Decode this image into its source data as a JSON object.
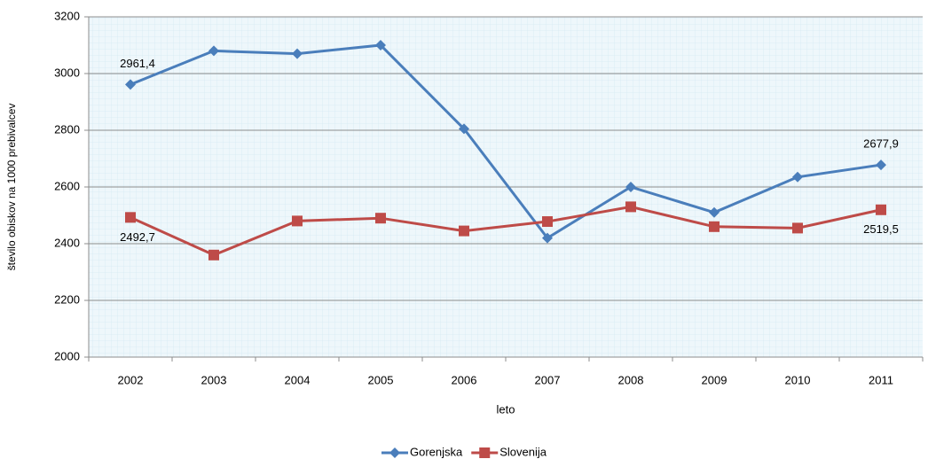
{
  "chart_data": {
    "type": "line",
    "categories": [
      "2002",
      "2003",
      "2004",
      "2005",
      "2006",
      "2007",
      "2008",
      "2009",
      "2010",
      "2011"
    ],
    "series": [
      {
        "name": "Gorenjska",
        "color": "#4a7ebb",
        "marker": "diamond",
        "values": [
          2961.4,
          3080,
          3070,
          3100,
          2805,
          2420,
          2600,
          2510,
          2635,
          2677.9
        ],
        "value_labels": [
          "2961,4",
          null,
          null,
          null,
          null,
          null,
          null,
          null,
          null,
          "2677,9"
        ]
      },
      {
        "name": "Slovenija",
        "color": "#be4b48",
        "marker": "square",
        "values": [
          2492.7,
          2360,
          2480,
          2490,
          2445,
          2478,
          2530,
          2460,
          2455,
          2519.5
        ],
        "value_labels": [
          "2492,7",
          null,
          null,
          null,
          null,
          null,
          null,
          null,
          null,
          "2519,5"
        ]
      }
    ],
    "xlabel": "leto",
    "ylabel": "število obiskov na 1000 prebivalcev",
    "ylim": [
      2000,
      3200
    ],
    "yticks": [
      2000,
      2200,
      2400,
      2600,
      2800,
      3000,
      3200
    ],
    "grid": true,
    "legend": "bottom"
  }
}
